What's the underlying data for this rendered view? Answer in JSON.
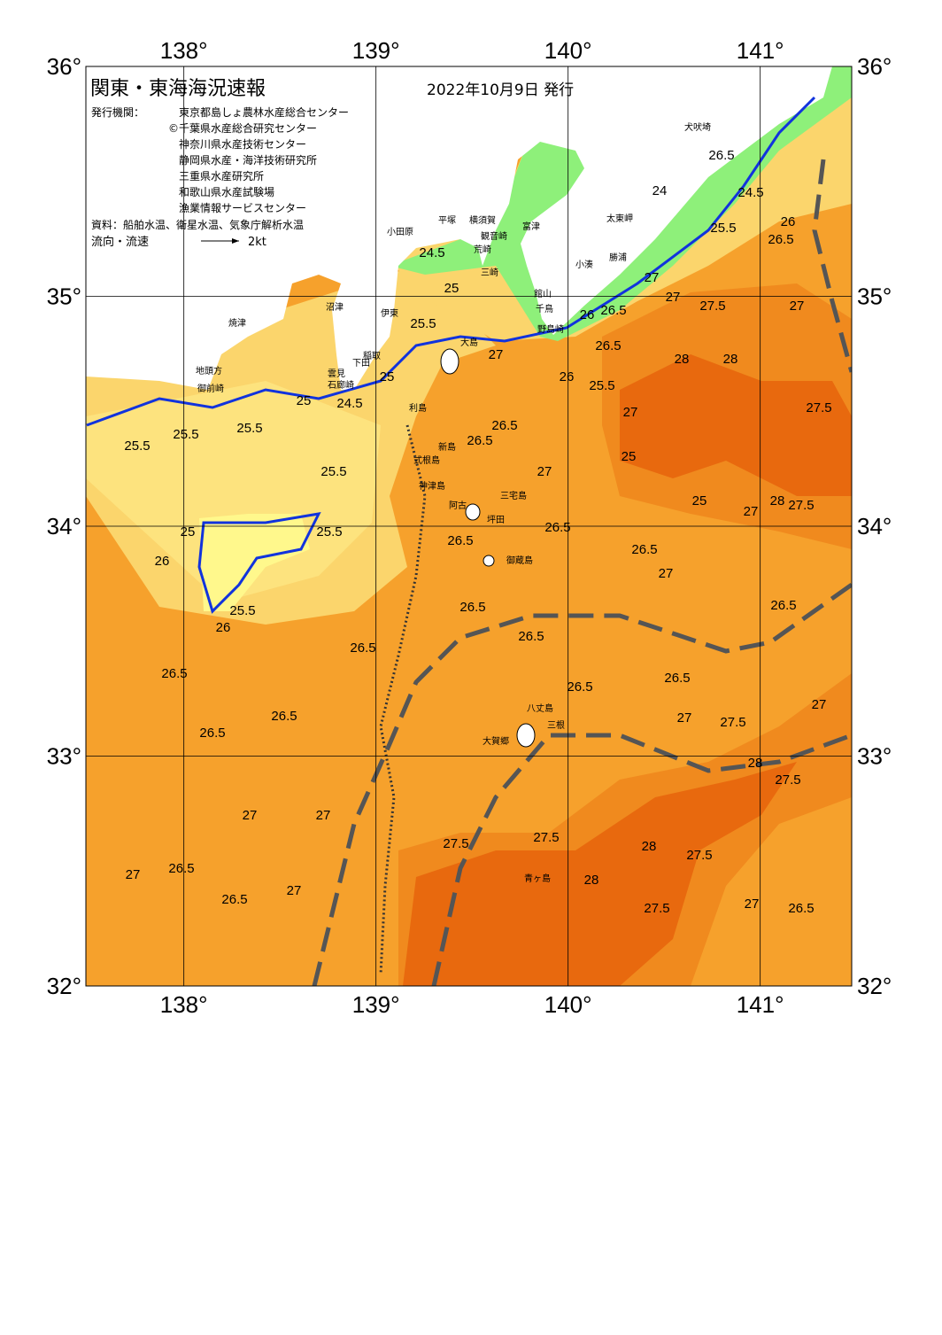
{
  "header": {
    "title": "関東・東海海況速報",
    "date": "2022年10月9日 発行"
  },
  "info": {
    "publisher_label": "発行機関：",
    "publishers": [
      "東京都島しょ農林水産総合センター",
      "©千葉県水産総合研究センター",
      "神奈川県水産技術センター",
      "静岡県水産・海洋技術研究所",
      "三重県水産研究所",
      "和歌山県水産試験場",
      "漁業情報サービスセンター"
    ],
    "source": "資料：船舶水温、衛星水温、気象庁解析水温",
    "current_label": "流向・流速",
    "current_scale": "2kt"
  },
  "map": {
    "lon_ticks": [
      {
        "value": 138,
        "label": "138°"
      },
      {
        "value": 139,
        "label": "139°"
      },
      {
        "value": 140,
        "label": "140°"
      },
      {
        "value": 141,
        "label": "141°"
      }
    ],
    "lat_ticks": [
      {
        "value": 36,
        "label": "36°"
      },
      {
        "value": 35,
        "label": "35°"
      },
      {
        "value": 34,
        "label": "34°"
      },
      {
        "value": 33,
        "label": "33°"
      },
      {
        "value": 32,
        "label": "32°"
      }
    ],
    "place_names": [
      "小田原",
      "平塚",
      "横須賀",
      "観音崎",
      "荒崎",
      "三崎",
      "富津",
      "館山",
      "千鳥",
      "野島崎",
      "太東岬",
      "犬吠埼",
      "小湊",
      "勝浦",
      "沼津",
      "伊東",
      "焼津",
      "地頭方",
      "御前崎",
      "稲取",
      "下田",
      "雲見",
      "石廊崎",
      "大島",
      "利島",
      "新島",
      "式根島",
      "神津島",
      "三宅島",
      "阿古",
      "坪田",
      "御蔵島",
      "八丈島",
      "三根",
      "大賀郷",
      "青ヶ島"
    ],
    "contour_labels": [
      "24.5",
      "25",
      "25.5",
      "25",
      "24.5",
      "25",
      "25.5",
      "25.5",
      "25.5",
      "25.5",
      "25.5",
      "25.5",
      "25",
      "26",
      "26",
      "26.5",
      "26.5",
      "26.5",
      "26.5",
      "27",
      "27",
      "26.5",
      "26.5",
      "27",
      "27",
      "27.5",
      "27.5",
      "28",
      "28",
      "27.5",
      "27.5",
      "27",
      "26.5",
      "27.5",
      "28",
      "27.5",
      "27",
      "26.5",
      "26.5",
      "26.5",
      "26.5",
      "26.5",
      "26.5",
      "27",
      "26.5",
      "26.5",
      "26",
      "25.5",
      "26.5",
      "27",
      "26.5",
      "26",
      "25",
      "27",
      "28",
      "28",
      "27.5",
      "27",
      "27.5",
      "28",
      "27",
      "26.5",
      "27",
      "26.5",
      "27",
      "27.5",
      "26.5",
      "24",
      "24.5",
      "25.5",
      "26",
      "26.5",
      "27",
      "25",
      "27"
    ]
  }
}
